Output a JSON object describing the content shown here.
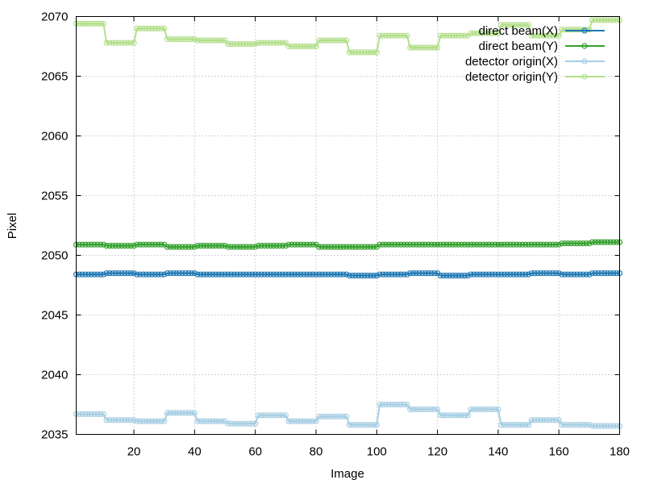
{
  "chart_data": {
    "type": "line",
    "title": "",
    "xlabel": "Image",
    "ylabel": "Pixel",
    "xlim": [
      1,
      180
    ],
    "ylim": [
      2035,
      2070
    ],
    "x_ticks": [
      20,
      40,
      60,
      80,
      100,
      120,
      140,
      160,
      180
    ],
    "y_ticks": [
      2035,
      2040,
      2045,
      2050,
      2055,
      2060,
      2065,
      2070
    ],
    "grid": true,
    "legend_position": "top-right",
    "marker": "circle",
    "segment_x_starts": [
      1,
      11,
      21,
      31,
      41,
      51,
      61,
      71,
      81,
      91,
      101,
      111,
      121,
      131,
      141,
      151,
      161,
      171
    ],
    "segment_x_ends": [
      10,
      20,
      30,
      40,
      50,
      60,
      70,
      80,
      90,
      100,
      110,
      120,
      130,
      140,
      150,
      160,
      170,
      180
    ],
    "series": [
      {
        "name": "direct beam(X)",
        "color": "#1f78b4",
        "segment_values": [
          2048.4,
          2048.5,
          2048.4,
          2048.5,
          2048.4,
          2048.4,
          2048.4,
          2048.4,
          2048.4,
          2048.3,
          2048.4,
          2048.5,
          2048.3,
          2048.4,
          2048.4,
          2048.5,
          2048.4,
          2048.5
        ]
      },
      {
        "name": "direct beam(Y)",
        "color": "#33a02c",
        "segment_values": [
          2050.9,
          2050.8,
          2050.9,
          2050.7,
          2050.8,
          2050.7,
          2050.8,
          2050.9,
          2050.7,
          2050.7,
          2050.9,
          2050.9,
          2050.9,
          2050.9,
          2050.9,
          2050.9,
          2051.0,
          2051.1
        ]
      },
      {
        "name": "detector origin(X)",
        "color": "#a6cee3",
        "segment_values": [
          2036.7,
          2036.2,
          2036.1,
          2036.8,
          2036.1,
          2035.9,
          2036.6,
          2036.1,
          2036.5,
          2035.8,
          2037.5,
          2037.1,
          2036.6,
          2037.1,
          2035.8,
          2036.2,
          2035.8,
          2035.7
        ]
      },
      {
        "name": "detector origin(Y)",
        "color": "#b2df8a",
        "segment_values": [
          2069.4,
          2067.8,
          2069.0,
          2068.1,
          2068.0,
          2067.7,
          2067.8,
          2067.5,
          2068.0,
          2067.0,
          2068.4,
          2067.4,
          2068.4,
          2068.6,
          2069.3,
          2068.4,
          2068.9,
          2069.7
        ]
      }
    ]
  }
}
